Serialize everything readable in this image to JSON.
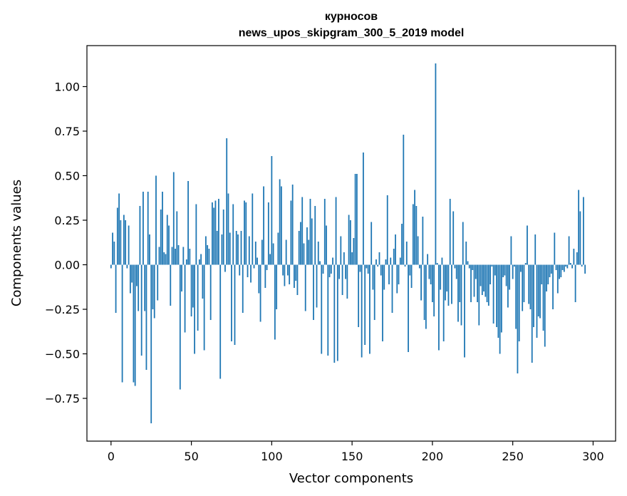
{
  "chart_data": {
    "type": "bar",
    "title": "курносов",
    "subtitle": "news_upos_skipgram_300_5_2019 model",
    "xlabel": "Vector components",
    "ylabel": "Components values",
    "xlim": [
      -15,
      314
    ],
    "ylim": [
      -0.99,
      1.23
    ],
    "xticks": [
      0,
      50,
      100,
      150,
      200,
      250,
      300
    ],
    "yticks": [
      -0.75,
      -0.5,
      -0.25,
      0.0,
      0.25,
      0.5,
      0.75,
      1.0
    ],
    "ytick_labels": [
      "−0.75",
      "−0.50",
      "−0.25",
      "0.00",
      "0.25",
      "0.50",
      "0.75",
      "1.00"
    ],
    "xtick_labels": [
      "0",
      "50",
      "100",
      "150",
      "200",
      "250",
      "300"
    ],
    "bar_color": "#1f77b4",
    "values": [
      -0.02,
      0.18,
      0.13,
      -0.27,
      0.32,
      0.4,
      0.25,
      -0.66,
      0.28,
      0.25,
      -0.02,
      0.22,
      -0.16,
      -0.1,
      -0.66,
      -0.68,
      -0.12,
      -0.26,
      0.33,
      -0.51,
      0.41,
      -0.26,
      -0.59,
      0.41,
      0.17,
      -0.89,
      -0.25,
      -0.3,
      0.5,
      -0.2,
      0.1,
      0.31,
      0.41,
      0.07,
      0.06,
      0.28,
      0.22,
      -0.23,
      0.1,
      0.52,
      0.09,
      0.3,
      0.11,
      -0.7,
      -0.15,
      0.1,
      -0.38,
      0.03,
      0.47,
      0.09,
      -0.29,
      -0.24,
      -0.5,
      0.34,
      -0.37,
      0.03,
      0.06,
      -0.19,
      -0.48,
      0.16,
      0.11,
      0.09,
      -0.31,
      0.35,
      0.32,
      0.36,
      0.19,
      0.37,
      -0.64,
      0.17,
      0.31,
      -0.04,
      0.71,
      0.4,
      0.18,
      -0.43,
      0.34,
      -0.45,
      0.19,
      0.17,
      -0.06,
      0.19,
      -0.27,
      0.36,
      0.35,
      -0.07,
      0.16,
      -0.1,
      0.4,
      -0.02,
      0.13,
      0.04,
      -0.16,
      -0.32,
      0.14,
      0.44,
      -0.13,
      -0.03,
      0.35,
      0.06,
      0.61,
      0.12,
      -0.42,
      -0.25,
      0.18,
      0.48,
      0.44,
      -0.06,
      -0.12,
      0.14,
      -0.06,
      -0.11,
      0.36,
      0.45,
      -0.13,
      -0.09,
      -0.17,
      0.19,
      0.24,
      0.38,
      0.12,
      -0.26,
      0.21,
      0.14,
      0.37,
      0.26,
      -0.31,
      0.33,
      -0.24,
      0.13,
      0.02,
      -0.5,
      -0.05,
      0.37,
      0.22,
      -0.51,
      -0.07,
      -0.05,
      0.04,
      -0.55,
      0.38,
      -0.54,
      -0.08,
      0.16,
      -0.17,
      0.07,
      -0.08,
      -0.19,
      0.28,
      0.25,
      0.07,
      0.15,
      0.51,
      0.51,
      -0.35,
      -0.04,
      -0.52,
      0.63,
      -0.45,
      -0.02,
      -0.05,
      -0.5,
      0.24,
      -0.14,
      -0.31,
      0.03,
      -0.01,
      0.07,
      -0.06,
      -0.43,
      -0.14,
      0.03,
      0.39,
      -0.11,
      0.04,
      -0.27,
      0.09,
      0.17,
      -0.16,
      -0.11,
      0.04,
      0.23,
      0.73,
      -0.01,
      0.13,
      -0.49,
      -0.06,
      -0.13,
      0.34,
      0.42,
      0.33,
      0.16,
      -0.02,
      -0.2,
      0.27,
      -0.31,
      -0.36,
      0.06,
      -0.08,
      -0.11,
      -0.21,
      -0.29,
      1.13,
      0.01,
      -0.48,
      -0.14,
      0.04,
      -0.43,
      -0.2,
      -0.15,
      -0.23,
      0.37,
      -0.22,
      0.3,
      -0.02,
      -0.08,
      -0.32,
      -0.21,
      -0.34,
      0.24,
      -0.52,
      0.13,
      0.02,
      -0.02,
      -0.21,
      -0.03,
      -0.18,
      -0.08,
      -0.21,
      -0.34,
      -0.12,
      -0.17,
      -0.15,
      -0.18,
      -0.21,
      -0.23,
      -0.11,
      -0.01,
      -0.33,
      -0.06,
      -0.35,
      -0.41,
      -0.5,
      -0.38,
      -0.07,
      -0.06,
      -0.12,
      -0.24,
      -0.14,
      0.16,
      -0.08,
      -0.01,
      -0.36,
      -0.61,
      -0.43,
      -0.04,
      -0.26,
      -0.21,
      0.01,
      0.22,
      -0.22,
      -0.25,
      -0.55,
      -0.35,
      0.17,
      -0.41,
      -0.29,
      -0.3,
      -0.11,
      -0.37,
      -0.46,
      -0.15,
      -0.11,
      -0.07,
      -0.05,
      -0.25,
      0.18,
      -0.03,
      -0.16,
      -0.08,
      -0.07,
      -0.03,
      -0.04,
      -0.01,
      -0.02,
      0.16,
      0.01,
      -0.02,
      0.09,
      -0.21,
      0.07,
      0.42,
      0.3,
      -0.01,
      0.38,
      -0.05
    ]
  }
}
